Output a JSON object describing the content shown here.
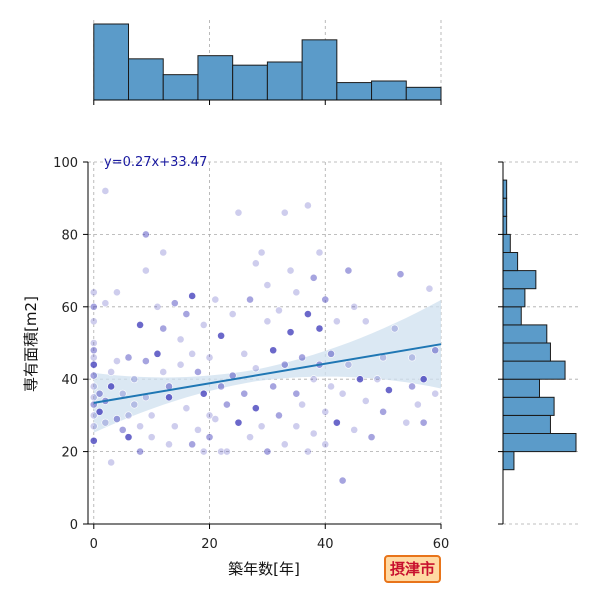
{
  "chart_data": {
    "type": "scatter",
    "xlabel": "築年数[年]",
    "ylabel": "専有面積[m2]",
    "xlim": [
      -1,
      60
    ],
    "ylim": [
      0,
      100
    ],
    "xticks": [
      0,
      20,
      40,
      60
    ],
    "yticks": [
      0,
      20,
      40,
      60,
      80,
      100
    ],
    "grid": true,
    "annotation": "y=0.27x+33.47",
    "city_label": "摂津市",
    "colors": {
      "points": "#3a36b8",
      "bars": "#5b9bc9",
      "regression": "#1f77b4",
      "band": "#cfe0ef",
      "annotation": "#1a1aa0"
    },
    "regression": {
      "slope": 0.27,
      "intercept": 33.47,
      "x_range": [
        0,
        60
      ]
    },
    "points": [
      [
        0,
        23
      ],
      [
        0,
        27
      ],
      [
        0,
        30
      ],
      [
        0,
        33
      ],
      [
        0,
        35
      ],
      [
        0,
        38
      ],
      [
        0,
        41
      ],
      [
        0,
        44
      ],
      [
        0,
        46
      ],
      [
        0,
        48
      ],
      [
        0,
        50
      ],
      [
        0,
        56
      ],
      [
        0,
        60
      ],
      [
        0,
        64
      ],
      [
        1,
        31
      ],
      [
        1,
        36
      ],
      [
        2,
        92
      ],
      [
        2,
        61
      ],
      [
        2,
        34
      ],
      [
        2,
        28
      ],
      [
        3,
        17
      ],
      [
        3,
        38
      ],
      [
        3,
        42
      ],
      [
        4,
        45
      ],
      [
        4,
        29
      ],
      [
        4,
        64
      ],
      [
        5,
        36
      ],
      [
        5,
        26
      ],
      [
        6,
        24
      ],
      [
        6,
        30
      ],
      [
        6,
        46
      ],
      [
        7,
        33
      ],
      [
        7,
        40
      ],
      [
        8,
        20
      ],
      [
        8,
        27
      ],
      [
        8,
        55
      ],
      [
        9,
        80
      ],
      [
        9,
        70
      ],
      [
        9,
        35
      ],
      [
        9,
        45
      ],
      [
        10,
        30
      ],
      [
        10,
        24
      ],
      [
        11,
        47
      ],
      [
        11,
        60
      ],
      [
        12,
        75
      ],
      [
        12,
        54
      ],
      [
        12,
        42
      ],
      [
        13,
        22
      ],
      [
        13,
        38
      ],
      [
        13,
        35
      ],
      [
        14,
        27
      ],
      [
        14,
        61
      ],
      [
        15,
        44
      ],
      [
        15,
        51
      ],
      [
        16,
        58
      ],
      [
        16,
        32
      ],
      [
        17,
        63
      ],
      [
        17,
        22
      ],
      [
        17,
        47
      ],
      [
        18,
        26
      ],
      [
        18,
        42
      ],
      [
        19,
        55
      ],
      [
        19,
        20
      ],
      [
        19,
        36
      ],
      [
        20,
        30
      ],
      [
        20,
        46
      ],
      [
        20,
        24
      ],
      [
        21,
        62
      ],
      [
        21,
        29
      ],
      [
        22,
        38
      ],
      [
        22,
        52
      ],
      [
        22,
        20
      ],
      [
        23,
        33
      ],
      [
        23,
        20
      ],
      [
        24,
        58
      ],
      [
        24,
        41
      ],
      [
        25,
        86
      ],
      [
        25,
        28
      ],
      [
        26,
        36
      ],
      [
        26,
        47
      ],
      [
        27,
        24
      ],
      [
        27,
        62
      ],
      [
        28,
        72
      ],
      [
        28,
        43
      ],
      [
        28,
        32
      ],
      [
        29,
        75
      ],
      [
        29,
        27
      ],
      [
        30,
        20
      ],
      [
        30,
        56
      ],
      [
        30,
        66
      ],
      [
        31,
        38
      ],
      [
        31,
        48
      ],
      [
        32,
        59
      ],
      [
        32,
        30
      ],
      [
        33,
        86
      ],
      [
        33,
        22
      ],
      [
        33,
        44
      ],
      [
        34,
        70
      ],
      [
        34,
        53
      ],
      [
        35,
        36
      ],
      [
        35,
        27
      ],
      [
        35,
        64
      ],
      [
        36,
        46
      ],
      [
        36,
        33
      ],
      [
        37,
        88
      ],
      [
        37,
        58
      ],
      [
        37,
        20
      ],
      [
        38,
        40
      ],
      [
        38,
        68
      ],
      [
        38,
        25
      ],
      [
        39,
        75
      ],
      [
        39,
        44
      ],
      [
        39,
        54
      ],
      [
        40,
        31
      ],
      [
        40,
        62
      ],
      [
        40,
        22
      ],
      [
        41,
        38
      ],
      [
        41,
        47
      ],
      [
        42,
        56
      ],
      [
        42,
        28
      ],
      [
        43,
        12
      ],
      [
        43,
        36
      ],
      [
        44,
        44
      ],
      [
        44,
        70
      ],
      [
        45,
        60
      ],
      [
        45,
        26
      ],
      [
        46,
        40
      ],
      [
        47,
        56
      ],
      [
        47,
        34
      ],
      [
        48,
        24
      ],
      [
        49,
        40
      ],
      [
        50,
        46
      ],
      [
        50,
        31
      ],
      [
        51,
        37
      ],
      [
        52,
        54
      ],
      [
        53,
        69
      ],
      [
        54,
        28
      ],
      [
        55,
        46
      ],
      [
        55,
        38
      ],
      [
        56,
        33
      ],
      [
        57,
        40
      ],
      [
        57,
        28
      ],
      [
        58,
        65
      ],
      [
        59,
        36
      ],
      [
        59,
        48
      ]
    ],
    "x_hist": {
      "bins": [
        0,
        6,
        12,
        18,
        24,
        30,
        36,
        42,
        48,
        54,
        60
      ],
      "counts": [
        48,
        26,
        16,
        28,
        22,
        24,
        38,
        11,
        12,
        8
      ]
    },
    "y_hist": {
      "bins": [
        15,
        20,
        25,
        30,
        35,
        40,
        45,
        50,
        55,
        60,
        65,
        70,
        75,
        80,
        85,
        90,
        95,
        100
      ],
      "counts": [
        3,
        20,
        13,
        14,
        10,
        17,
        13,
        12,
        5,
        6,
        9,
        4,
        2,
        1,
        1,
        1,
        0
      ]
    }
  }
}
